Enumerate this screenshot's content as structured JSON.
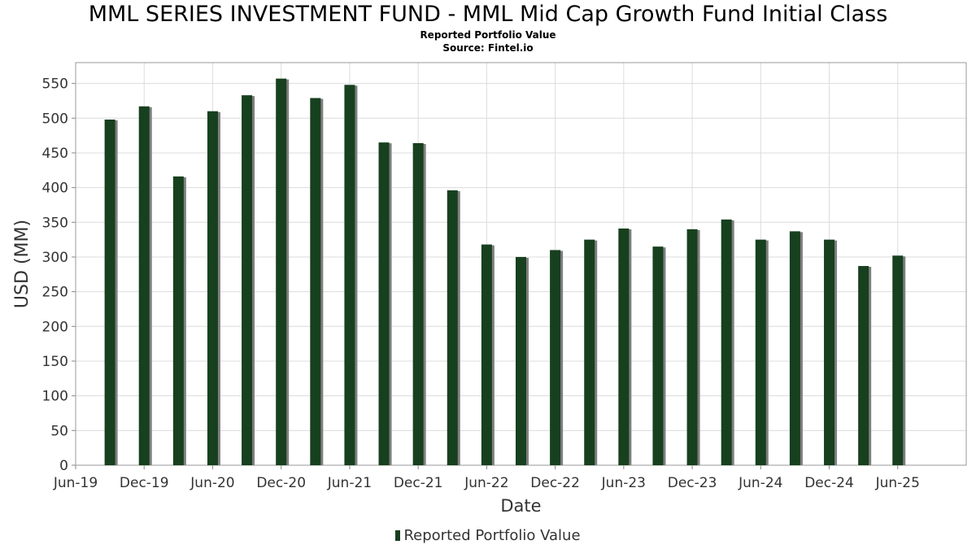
{
  "chart_data": {
    "type": "bar",
    "title": "MML SERIES INVESTMENT FUND - MML Mid Cap Growth Fund Initial Class",
    "subtitle": "Reported Portfolio Value",
    "source": "Source: Fintel.io",
    "xlabel": "Date",
    "ylabel": "USD (MM)",
    "ylim": [
      0,
      580
    ],
    "yticks": [
      0,
      50,
      100,
      150,
      200,
      250,
      300,
      350,
      400,
      450,
      500,
      550
    ],
    "xtick_labels": [
      "Jun-19",
      "Dec-19",
      "Jun-20",
      "Dec-20",
      "Jun-21",
      "Dec-21",
      "Jun-22",
      "Dec-22",
      "Jun-23",
      "Dec-23",
      "Jun-24",
      "Dec-24",
      "Jun-25"
    ],
    "x_range": [
      "2019-06",
      "2025-12"
    ],
    "grid": true,
    "legend_position": "bottom",
    "colors": {
      "bar": "#17401f",
      "shadow": "#7f7f7f"
    },
    "series": [
      {
        "name": "Reported Portfolio Value",
        "points": [
          {
            "date": "2019-09",
            "value": 498
          },
          {
            "date": "2019-12",
            "value": 517
          },
          {
            "date": "2020-03",
            "value": 416
          },
          {
            "date": "2020-06",
            "value": 510
          },
          {
            "date": "2020-09",
            "value": 533
          },
          {
            "date": "2020-12",
            "value": 557
          },
          {
            "date": "2021-03",
            "value": 529
          },
          {
            "date": "2021-06",
            "value": 548
          },
          {
            "date": "2021-09",
            "value": 465
          },
          {
            "date": "2021-12",
            "value": 464
          },
          {
            "date": "2022-03",
            "value": 396
          },
          {
            "date": "2022-06",
            "value": 318
          },
          {
            "date": "2022-09",
            "value": 300
          },
          {
            "date": "2022-12",
            "value": 310
          },
          {
            "date": "2023-03",
            "value": 325
          },
          {
            "date": "2023-06",
            "value": 341
          },
          {
            "date": "2023-09",
            "value": 315
          },
          {
            "date": "2023-12",
            "value": 340
          },
          {
            "date": "2024-03",
            "value": 354
          },
          {
            "date": "2024-06",
            "value": 325
          },
          {
            "date": "2024-09",
            "value": 337
          },
          {
            "date": "2024-12",
            "value": 325
          },
          {
            "date": "2025-03",
            "value": 287
          },
          {
            "date": "2025-06",
            "value": 302
          }
        ]
      }
    ]
  }
}
